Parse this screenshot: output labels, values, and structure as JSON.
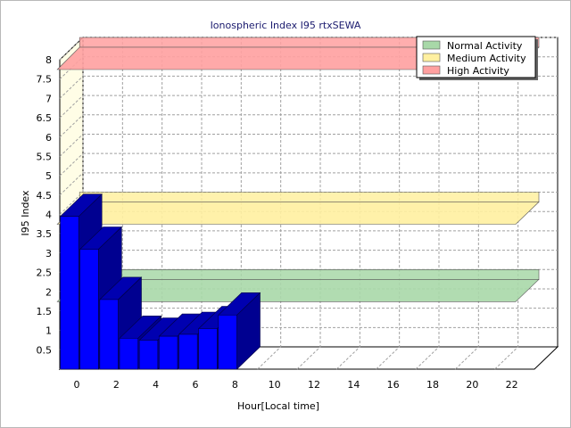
{
  "chart_data": {
    "type": "bar",
    "title": "Ionospheric Index I95 rtxSEWA",
    "xlabel": "Hour[Local time]",
    "ylabel": "I95 Index",
    "xlim": [
      0,
      24
    ],
    "ylim": [
      0,
      8
    ],
    "x_ticks": [
      "0",
      "2",
      "4",
      "6",
      "8",
      "10",
      "12",
      "14",
      "16",
      "18",
      "20",
      "22"
    ],
    "y_ticks": [
      "0.5",
      "1",
      "1.5",
      "2",
      "2.5",
      "3",
      "3.5",
      "4",
      "4.5",
      "5",
      "5.5",
      "6",
      "6.5",
      "7",
      "7.5",
      "8"
    ],
    "grid": true,
    "three_d": true,
    "legend_position": "top-right",
    "series": [
      {
        "name": "",
        "color": "#0000ff",
        "x": [
          0,
          1,
          2,
          3,
          4,
          5,
          6,
          7,
          8
        ],
        "values": [
          3.95,
          3.1,
          1.8,
          0.8,
          0.75,
          0.85,
          0.9,
          1.05,
          1.4
        ]
      }
    ],
    "activity_bands": [
      {
        "name": "Normal Activity",
        "value": 2,
        "color": "#a8d8a8"
      },
      {
        "name": "Medium Activity",
        "value": 4,
        "color": "#fff0a0"
      },
      {
        "name": "High Activity",
        "value": 8,
        "color": "#ffa0a0"
      }
    ]
  }
}
